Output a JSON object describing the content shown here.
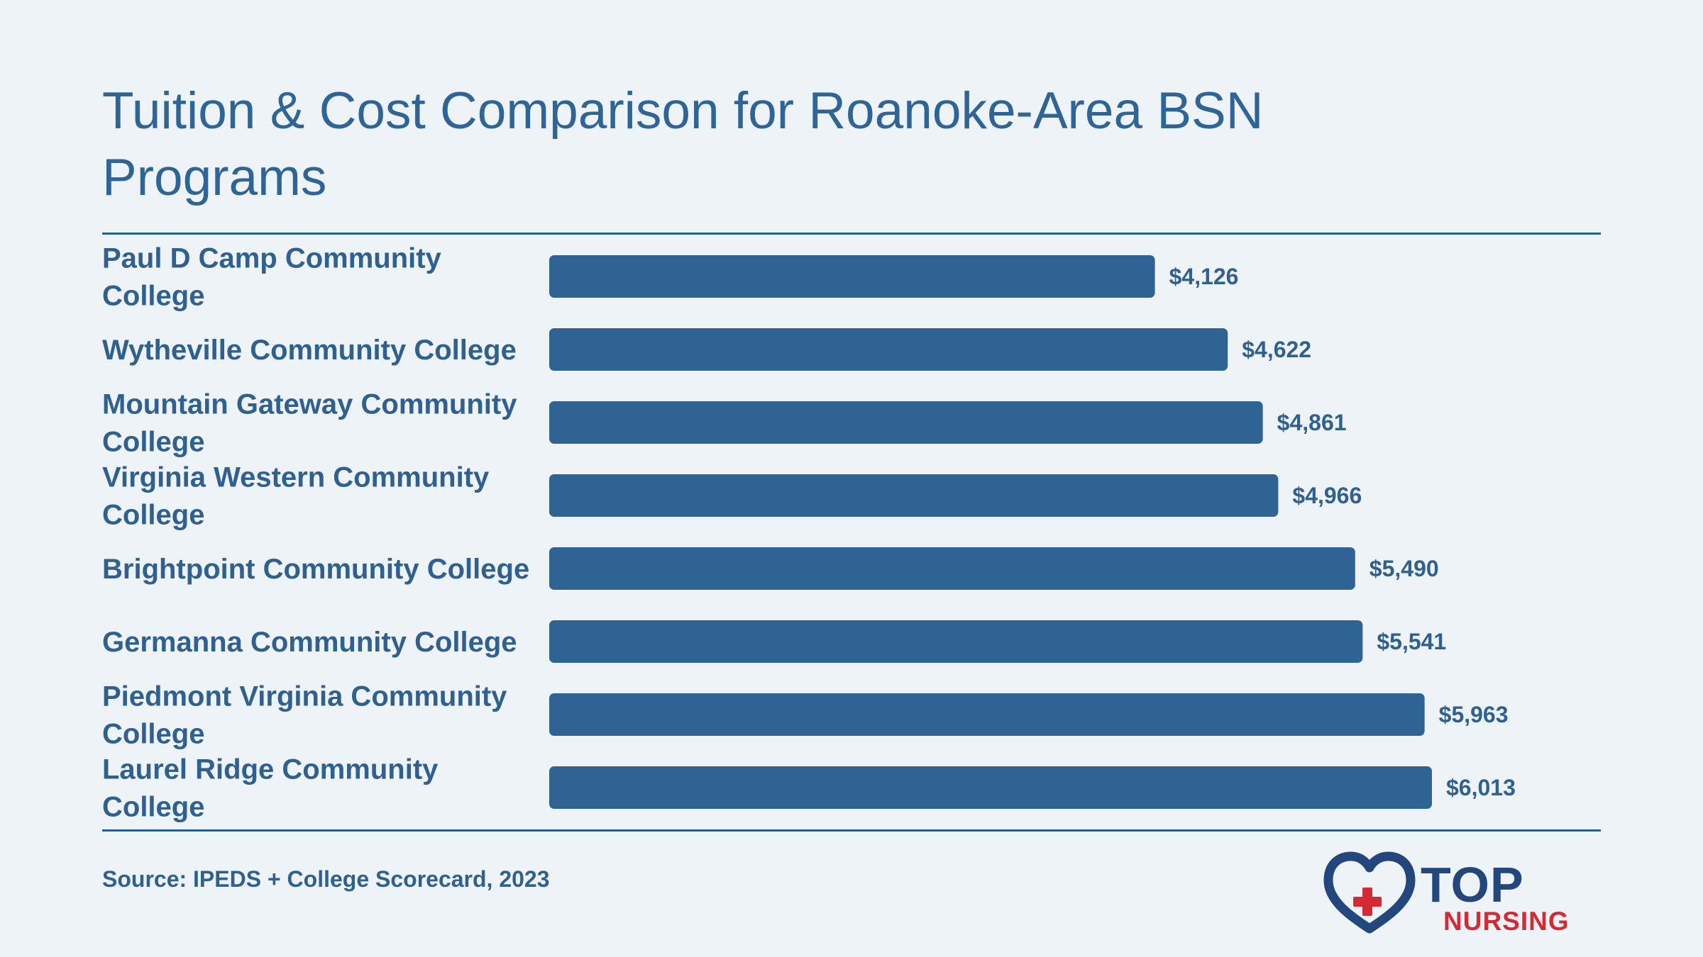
{
  "chart_data": {
    "type": "bar",
    "orientation": "horizontal",
    "title": "Tuition & Cost Comparison for Roanoke-Area BSN Programs",
    "categories": [
      "Paul D Camp Community College",
      "Wytheville Community College",
      "Mountain Gateway Community College",
      "Virginia Western Community College",
      "Brightpoint Community College",
      "Germanna Community College",
      "Piedmont Virginia Community College",
      "Laurel Ridge Community College"
    ],
    "values": [
      4126,
      4622,
      4861,
      4966,
      5490,
      5541,
      5963,
      6013
    ],
    "value_labels": [
      "$4,126",
      "$4,622",
      "$4,861",
      "$4,966",
      "$5,490",
      "$5,541",
      "$5,963",
      "$6,013"
    ],
    "xlim": [
      0,
      6013
    ],
    "grid": false,
    "legend": "none",
    "bar_color": "#2f6394",
    "text_color": "#2f6090",
    "source": "Source: IPEDS + College Scorecard, 2023"
  },
  "logo": {
    "top_text": "TOP",
    "bottom_text": "NURSING",
    "heart_color": "#23467c",
    "cross_color": "#d42a35"
  }
}
